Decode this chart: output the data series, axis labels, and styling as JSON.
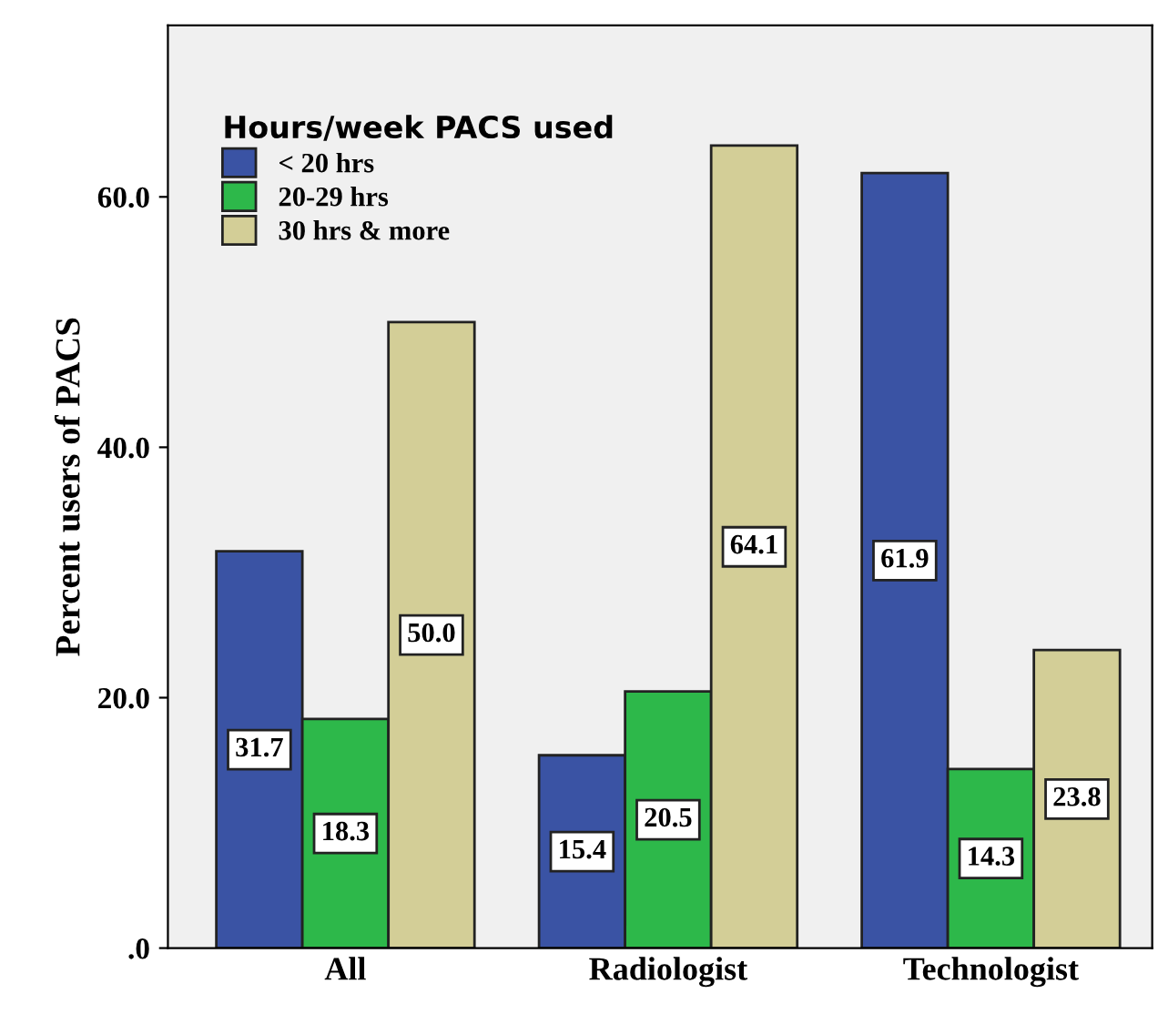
{
  "chart_data": {
    "type": "bar",
    "ylabel": "Percent users of PACS",
    "legend_title": "Hours/week PACS used",
    "categories": [
      "All",
      "Radiologist",
      "Technologist"
    ],
    "series": [
      {
        "name": "< 20 hrs",
        "color": "#3a53a4",
        "values": [
          31.7,
          15.4,
          61.9
        ],
        "value_labels": [
          "31.7",
          "15.4",
          "61.9"
        ]
      },
      {
        "name": "20-29 hrs",
        "color": "#2db84a",
        "values": [
          18.3,
          20.5,
          14.3
        ],
        "value_labels": [
          "18.3",
          "20.5",
          "14.3"
        ]
      },
      {
        "name": "30 hrs & more",
        "color": "#d3ce97",
        "values": [
          50.0,
          64.1,
          23.8
        ],
        "value_labels": [
          "50.0",
          "64.1",
          "23.8"
        ]
      }
    ],
    "ylim": [
      0,
      73.7
    ],
    "yticks": [
      {
        "value": 0,
        "label": ".0"
      },
      {
        "value": 20,
        "label": "20.0"
      },
      {
        "value": 40,
        "label": "40.0"
      },
      {
        "value": 60,
        "label": "60.0"
      }
    ],
    "legend": "top left",
    "grid": false
  }
}
